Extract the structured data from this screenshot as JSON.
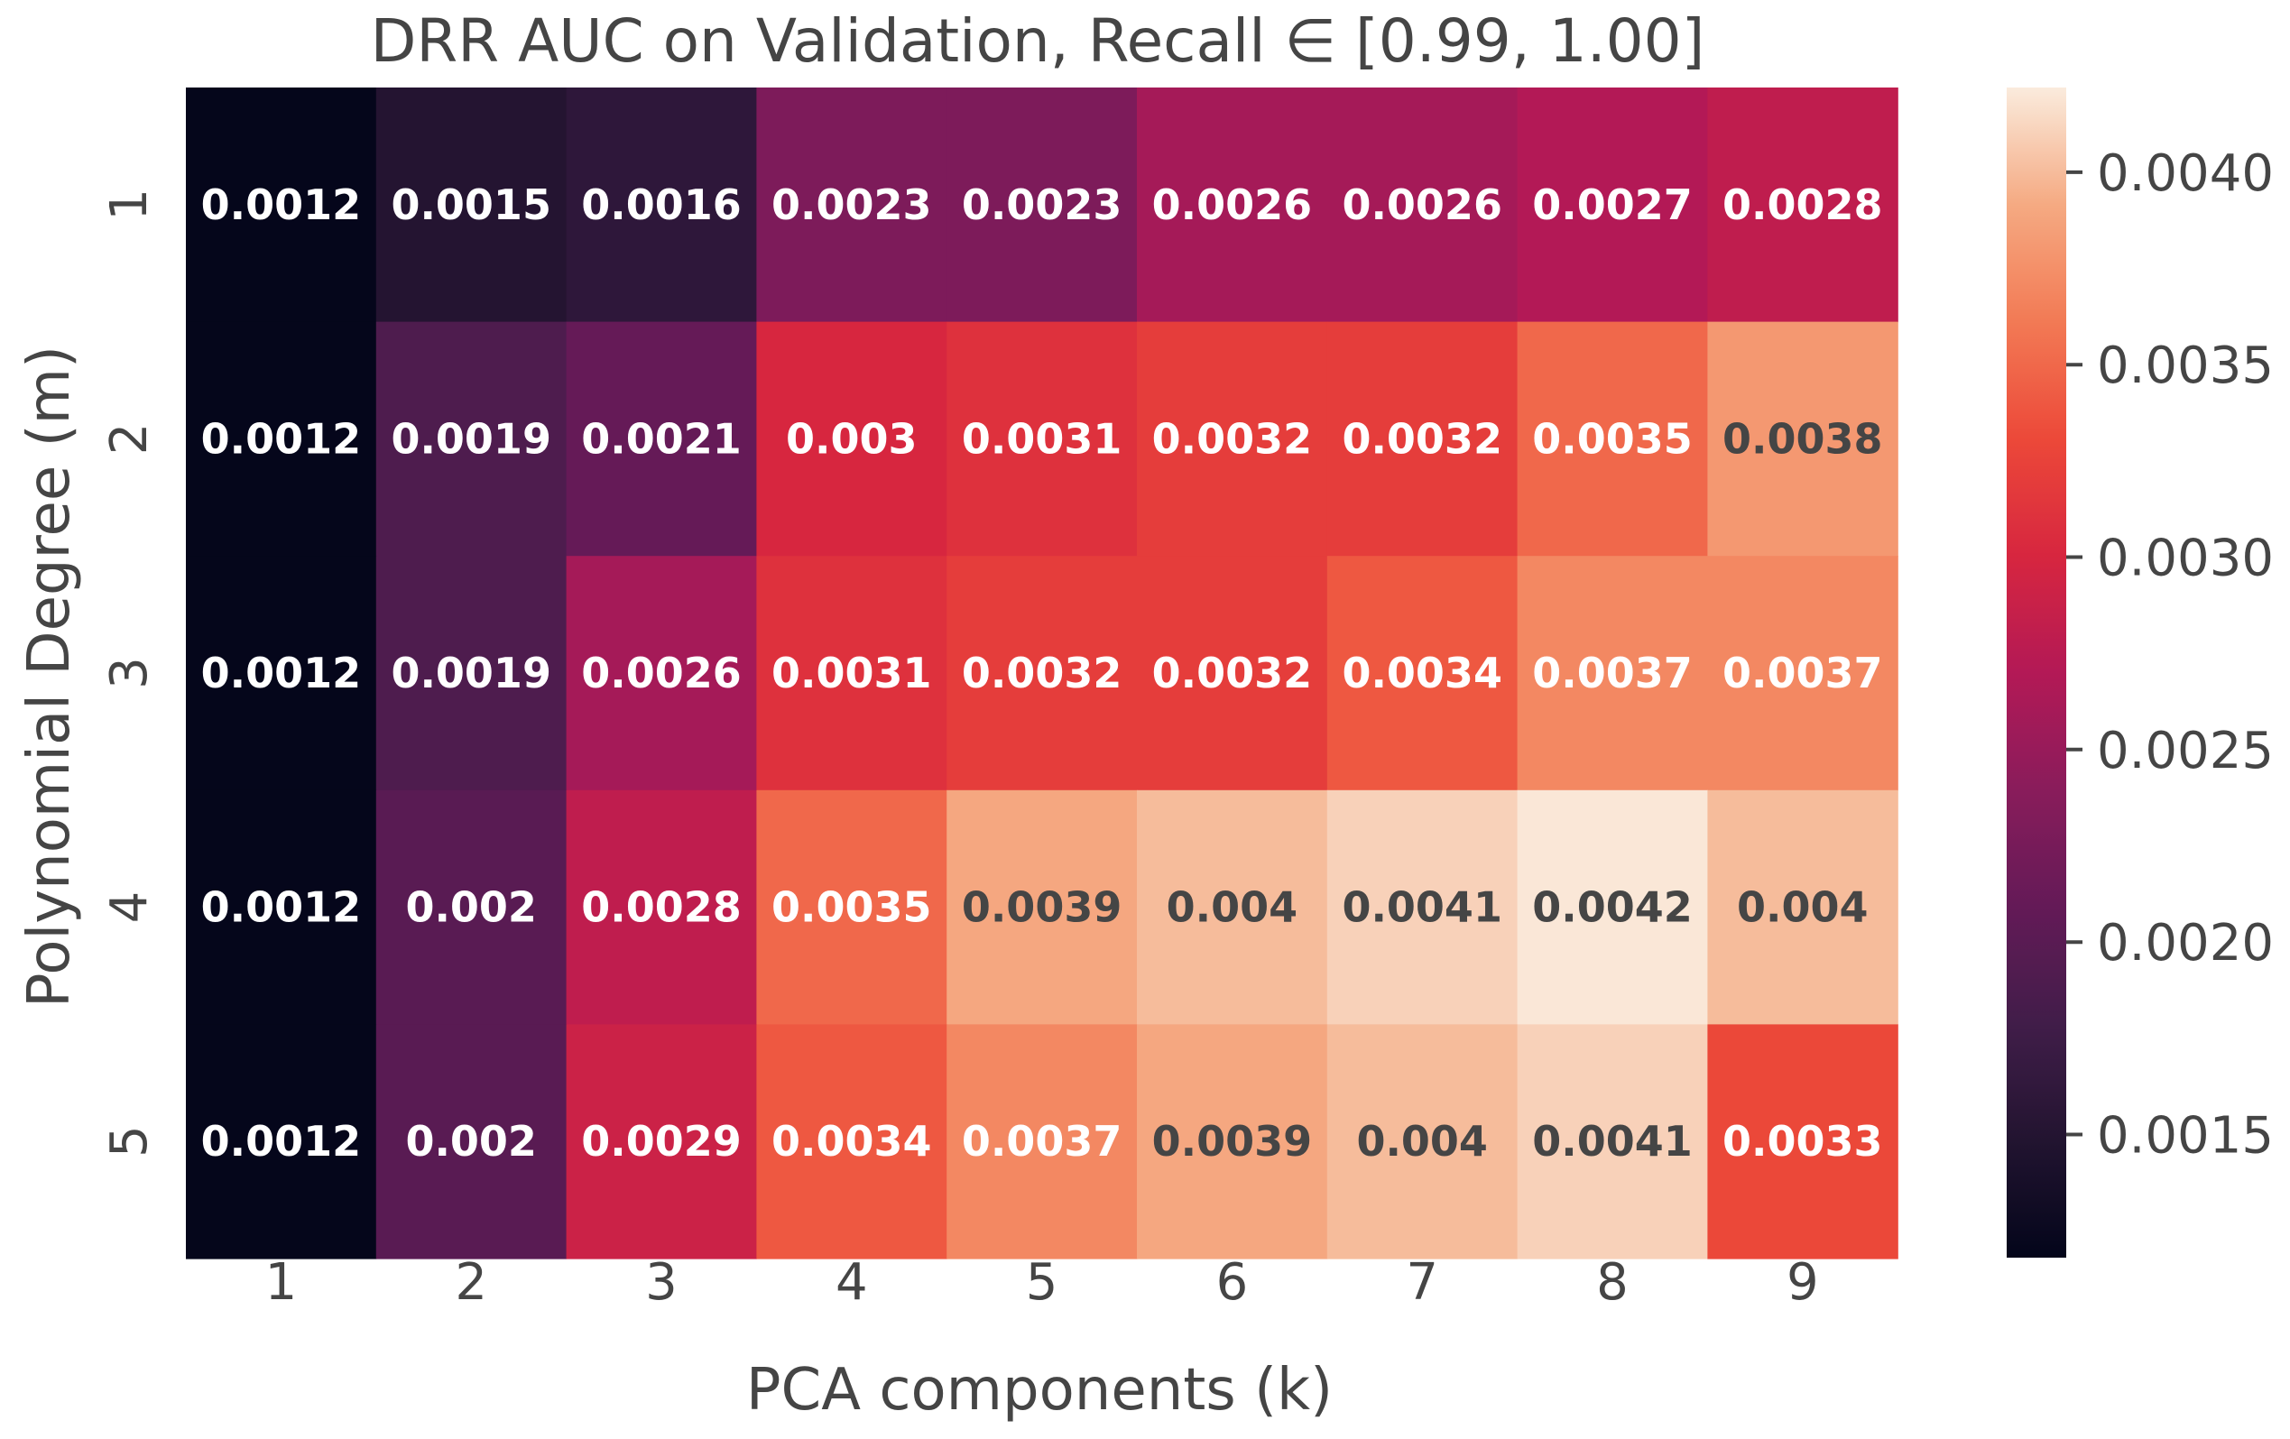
{
  "chart_data": {
    "type": "heatmap",
    "title": "DRR AUC on Validation, Recall ∈ [0.99, 1.00]",
    "xlabel": "PCA components (k)",
    "ylabel": "Polynomial Degree (m)",
    "x_categories": [
      "1",
      "2",
      "3",
      "4",
      "5",
      "6",
      "7",
      "8",
      "9"
    ],
    "y_categories": [
      "1",
      "2",
      "3",
      "4",
      "5"
    ],
    "values": [
      [
        0.0012,
        0.0015,
        0.0016,
        0.0023,
        0.0023,
        0.0026,
        0.0026,
        0.0027,
        0.0028
      ],
      [
        0.0012,
        0.0019,
        0.0021,
        0.003,
        0.0031,
        0.0032,
        0.0032,
        0.0035,
        0.0038
      ],
      [
        0.0012,
        0.0019,
        0.0026,
        0.0031,
        0.0032,
        0.0032,
        0.0034,
        0.0037,
        0.0037
      ],
      [
        0.0012,
        0.002,
        0.0028,
        0.0035,
        0.0039,
        0.004,
        0.0041,
        0.0042,
        0.004
      ],
      [
        0.0012,
        0.002,
        0.0029,
        0.0034,
        0.0037,
        0.0039,
        0.004,
        0.0041,
        0.0033
      ]
    ],
    "colorbar": {
      "range": [
        0.00118,
        0.00422
      ],
      "ticks": [
        0.0015,
        0.002,
        0.0025,
        0.003,
        0.0035,
        0.004
      ],
      "tick_labels": [
        "0.0015",
        "0.0020",
        "0.0025",
        "0.0030",
        "0.0035",
        "0.0040"
      ]
    },
    "colormap": "rocket",
    "text_colors": {
      "light": "#ffffff",
      "dark": "#454545"
    }
  }
}
